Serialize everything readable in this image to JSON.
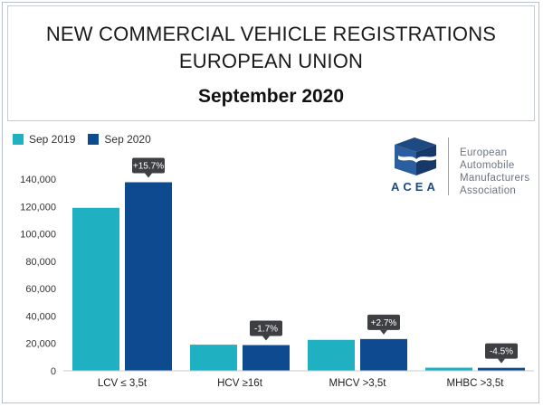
{
  "title_line1": "NEW COMMERCIAL VEHICLE REGISTRATIONS",
  "title_line2": "EUROPEAN UNION",
  "subtitle": "September 2020",
  "logo": {
    "acronym": "ACEA",
    "name_lines": [
      "European",
      "Automobile",
      "Manufacturers",
      "Association"
    ]
  },
  "chart_data": {
    "type": "bar",
    "title": "NEW COMMERCIAL VEHICLE REGISTRATIONS EUROPEAN UNION",
    "subtitle": "September 2020",
    "categories": [
      "LCV ≤ 3,5t",
      "HCV ≥16t",
      "MHCV >3,5t",
      "MHBC >3,5t"
    ],
    "series": [
      {
        "name": "Sep 2019",
        "color": "#1fb1c1",
        "values": [
          119000,
          19100,
          22600,
          2300
        ]
      },
      {
        "name": "Sep 2020",
        "color": "#0e4a8f",
        "values": [
          137700,
          18800,
          23200,
          2200
        ]
      }
    ],
    "change_labels": [
      "+15.7%",
      "-1.7%",
      "+2.7%",
      "-4.5%"
    ],
    "ylim": [
      0,
      140000
    ],
    "yticks": [
      "0",
      "20,000",
      "40,000",
      "60,000",
      "80,000",
      "100,000",
      "120,000",
      "140,000"
    ],
    "ytick_values": [
      0,
      20000,
      40000,
      60000,
      80000,
      100000,
      120000,
      140000
    ],
    "legend_position": "top-left",
    "grid": false,
    "xlabel": "",
    "ylabel": ""
  }
}
